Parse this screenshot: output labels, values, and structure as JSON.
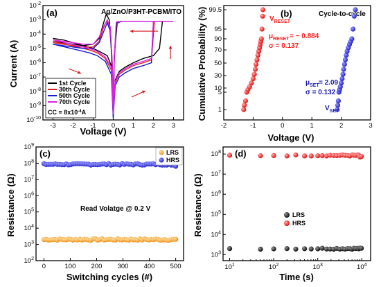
{
  "chart_data": [
    {
      "panel": "(a)",
      "type": "line",
      "title": "Ag/ZnO/P3HT-PCBM/ITO",
      "xlabel": "Voltage (V)",
      "ylabel": "Current (A)",
      "xlim": [
        -3.5,
        3.5
      ],
      "ylim_log": [
        -10,
        -2
      ],
      "x_ticks": [
        "-3",
        "-2",
        "-1",
        "0",
        "1",
        "2",
        "3"
      ],
      "y_ticks": [
        "10-10",
        "10-9",
        "10-8",
        "10-7",
        "10-6",
        "10-5",
        "10-4",
        "10-3",
        "10-2"
      ],
      "log_scale": "y",
      "legend_position": "bottom-left",
      "annotation": "CC = 8x10-4A",
      "series": [
        {
          "name": "1st Cycle",
          "color": "#000000",
          "branch_set": [
            [
              -3,
              -4.5
            ],
            [
              -2.5,
              -4.6
            ],
            [
              -2,
              -4.7
            ],
            [
              -1.5,
              -4.8
            ],
            [
              -1,
              -4.7
            ],
            [
              -0.7,
              -4.3
            ],
            [
              -0.5,
              -3.3
            ],
            [
              -0.35,
              -2.6
            ],
            [
              -0.2,
              -3.0
            ],
            [
              -0.1,
              -5
            ],
            [
              0,
              -9.6
            ],
            [
              0.1,
              -7.2
            ],
            [
              0.3,
              -6.6
            ],
            [
              0.6,
              -6.3
            ],
            [
              1,
              -6.0
            ],
            [
              1.5,
              -5.7
            ],
            [
              2,
              -5.5
            ],
            [
              2.3,
              -5.0
            ],
            [
              2.45,
              -3.1
            ]
          ],
          "branch_reset": [
            [
              3,
              -3.1
            ],
            [
              2,
              -3.1
            ],
            [
              1,
              -3.1
            ],
            [
              0.5,
              -3.1
            ],
            [
              0.2,
              -3.15
            ],
            [
              0.05,
              -5.5
            ],
            [
              0,
              -9.8
            ],
            [
              -0.1,
              -6.2
            ],
            [
              -0.3,
              -5.5
            ],
            [
              -0.7,
              -5.2
            ],
            [
              -1,
              -5.0
            ],
            [
              -1.5,
              -4.8
            ],
            [
              -2,
              -4.6
            ],
            [
              -2.5,
              -4.4
            ],
            [
              -3,
              -4.3
            ]
          ]
        },
        {
          "name": "30th Cycle",
          "color": "#e02020",
          "branch_set": [
            [
              -3,
              -4.6
            ],
            [
              -2.5,
              -4.7
            ],
            [
              -2,
              -4.8
            ],
            [
              -1.5,
              -4.9
            ],
            [
              -1,
              -4.9
            ],
            [
              -0.7,
              -4.5
            ],
            [
              -0.5,
              -3.6
            ],
            [
              -0.3,
              -3.0
            ],
            [
              -0.15,
              -3.6
            ],
            [
              -0.05,
              -6
            ],
            [
              0,
              -9.3
            ],
            [
              0.1,
              -7.4
            ],
            [
              0.3,
              -6.8
            ],
            [
              0.6,
              -6.5
            ],
            [
              1,
              -6.2
            ],
            [
              1.5,
              -6.0
            ],
            [
              1.9,
              -5.8
            ],
            [
              2.05,
              -3.1
            ]
          ],
          "branch_reset": [
            [
              3,
              -3.1
            ],
            [
              2,
              -3.1
            ],
            [
              1,
              -3.1
            ],
            [
              0.4,
              -3.1
            ],
            [
              0.15,
              -3.2
            ],
            [
              0.05,
              -5.8
            ],
            [
              0,
              -9.5
            ],
            [
              -0.1,
              -6.5
            ],
            [
              -0.4,
              -5.7
            ],
            [
              -0.8,
              -5.3
            ],
            [
              -1.2,
              -5.1
            ],
            [
              -1.8,
              -4.9
            ],
            [
              -2.4,
              -4.7
            ],
            [
              -3,
              -4.5
            ]
          ]
        },
        {
          "name": "50th Cycle",
          "color": "#1a1ad6",
          "branch_set": [
            [
              -3,
              -4.7
            ],
            [
              -2.5,
              -4.8
            ],
            [
              -2,
              -4.9
            ],
            [
              -1.5,
              -5.0
            ],
            [
              -1,
              -5.0
            ],
            [
              -0.7,
              -4.6
            ],
            [
              -0.5,
              -3.9
            ],
            [
              -0.3,
              -3.2
            ],
            [
              -0.15,
              -3.8
            ],
            [
              -0.05,
              -6.2
            ],
            [
              0,
              -9.7
            ],
            [
              0.1,
              -7.6
            ],
            [
              0.3,
              -7.0
            ],
            [
              0.6,
              -6.7
            ],
            [
              1,
              -6.4
            ],
            [
              1.5,
              -6.2
            ],
            [
              1.9,
              -6.0
            ],
            [
              2.0,
              -3.1
            ]
          ],
          "branch_reset": [
            [
              3,
              -3.1
            ],
            [
              2,
              -3.1
            ],
            [
              1,
              -3.1
            ],
            [
              0.4,
              -3.1
            ],
            [
              0.15,
              -3.25
            ],
            [
              0.05,
              -6.0
            ],
            [
              0,
              -9.9
            ],
            [
              -0.1,
              -6.8
            ],
            [
              -0.4,
              -5.9
            ],
            [
              -0.8,
              -5.5
            ],
            [
              -1.2,
              -5.3
            ],
            [
              -1.8,
              -5.1
            ],
            [
              -2.4,
              -4.9
            ],
            [
              -3,
              -4.7
            ]
          ]
        },
        {
          "name": "70th Cycle",
          "color": "#e020e0",
          "branch_set": [
            [
              -3,
              -4.4
            ],
            [
              -2.5,
              -4.5
            ],
            [
              -2,
              -4.6
            ],
            [
              -1.5,
              -4.7
            ],
            [
              -1,
              -4.7
            ],
            [
              -0.7,
              -4.2
            ],
            [
              -0.5,
              -3.5
            ],
            [
              -0.3,
              -3.05
            ],
            [
              -0.15,
              -3.5
            ],
            [
              -0.05,
              -6.1
            ],
            [
              0,
              -9.4
            ],
            [
              0.1,
              -7.3
            ],
            [
              0.3,
              -6.7
            ],
            [
              0.6,
              -6.4
            ],
            [
              1,
              -6.1
            ],
            [
              1.5,
              -5.9
            ],
            [
              1.9,
              -5.7
            ],
            [
              2.0,
              -3.1
            ]
          ],
          "branch_reset": [
            [
              3,
              -3.1
            ],
            [
              2,
              -3.1
            ],
            [
              1,
              -3.1
            ],
            [
              0.4,
              -3.1
            ],
            [
              0.15,
              -3.15
            ],
            [
              0.05,
              -5.6
            ],
            [
              0,
              -9.6
            ],
            [
              -0.1,
              -6.3
            ],
            [
              -0.4,
              -5.6
            ],
            [
              -0.8,
              -5.2
            ],
            [
              -1.2,
              -5.0
            ],
            [
              -1.8,
              -4.8
            ],
            [
              -2.4,
              -4.6
            ],
            [
              -3,
              -4.4
            ]
          ]
        }
      ]
    },
    {
      "panel": "(b)",
      "type": "scatter",
      "title": "Cycle-to-cycle",
      "xlabel": "Voltage (V)",
      "ylabel": "Cumulative Probability (%)",
      "xlim": [
        -2,
        3
      ],
      "x_ticks": [
        "-2",
        "-1",
        "0",
        "1",
        "2",
        "3"
      ],
      "y_ticks": [
        "1",
        "5",
        "10",
        "30",
        "50",
        "70",
        "90",
        "95",
        "99.5"
      ],
      "y_scale": "probability",
      "series": [
        {
          "name": "VRESET",
          "color": "#ff1a1a",
          "mu": "μRESET = − 0.884",
          "sigma": "σ = 0.137",
          "points": [
            [
              -1.32,
              1
            ],
            [
              -1.3,
              2
            ],
            [
              -1.26,
              3
            ],
            [
              -1.22,
              5
            ],
            [
              -1.18,
              8
            ],
            [
              -1.12,
              12
            ],
            [
              -1.06,
              18
            ],
            [
              -1.0,
              25
            ],
            [
              -0.96,
              32
            ],
            [
              -0.93,
              40
            ],
            [
              -0.9,
              48
            ],
            [
              -0.87,
              55
            ],
            [
              -0.84,
              62
            ],
            [
              -0.81,
              68
            ],
            [
              -0.78,
              74
            ],
            [
              -0.76,
              80
            ],
            [
              -0.74,
              85
            ],
            [
              -0.72,
              90
            ],
            [
              -0.7,
              95
            ],
            [
              -0.68,
              98
            ],
            [
              -0.67,
              99.5
            ]
          ]
        },
        {
          "name": "VSET",
          "color": "#1a1ab0",
          "mu": "μSET = 2.09",
          "sigma": "σ = 0.132",
          "points": [
            [
              1.86,
              1
            ],
            [
              1.88,
              2
            ],
            [
              1.9,
              3
            ],
            [
              1.92,
              5
            ],
            [
              1.94,
              8
            ],
            [
              1.97,
              12
            ],
            [
              2.0,
              18
            ],
            [
              2.03,
              25
            ],
            [
              2.06,
              32
            ],
            [
              2.08,
              40
            ],
            [
              2.11,
              48
            ],
            [
              2.14,
              55
            ],
            [
              2.17,
              62
            ],
            [
              2.2,
              68
            ],
            [
              2.24,
              74
            ],
            [
              2.28,
              80
            ],
            [
              2.32,
              85
            ],
            [
              2.36,
              90
            ],
            [
              2.4,
              95
            ],
            [
              2.44,
              98
            ],
            [
              2.48,
              99.5
            ]
          ]
        }
      ]
    },
    {
      "panel": "(c)",
      "type": "scatter",
      "xlabel": "Switching cycles (#)",
      "ylabel": "Resistance (Ω)",
      "xlim": [
        -30,
        530
      ],
      "x_ticks": [
        "0",
        "100",
        "200",
        "300",
        "400",
        "500"
      ],
      "y_ticks": [
        "102",
        "103",
        "104",
        "105",
        "106",
        "107",
        "108",
        "109"
      ],
      "log_scale": "y",
      "ylim_log": [
        2,
        9
      ],
      "annotation": "Read Volatge @ 0.2 V",
      "legend_position": "top-right",
      "series": [
        {
          "name": "LRS",
          "color": "#ff9a1f",
          "log_value_mean": 3.3,
          "x_range": [
            0,
            500
          ],
          "count": 60
        },
        {
          "name": "HRS",
          "color": "#2a2ae0",
          "log_value_mean": 7.93,
          "x_range": [
            0,
            500
          ],
          "count": 60
        }
      ]
    },
    {
      "panel": "(d)",
      "type": "scatter",
      "xlabel": "Time (s)",
      "ylabel": "Resistance (Ω)",
      "x_ticks": [
        "101",
        "102",
        "103",
        "104"
      ],
      "y_ticks": [
        "103",
        "104",
        "105",
        "106",
        "107",
        "108"
      ],
      "log_scale": "xy",
      "xlim_log": [
        0.85,
        4.2
      ],
      "ylim_log": [
        2.7,
        8.35
      ],
      "legend_position": "center-right",
      "series": [
        {
          "name": "LRS",
          "color": "#000000",
          "log_value_mean": 3.3,
          "time_range_log": [
            1,
            4
          ]
        },
        {
          "name": "HRS",
          "color": "#ff1a1a",
          "log_value_mean": 7.93,
          "time_range_log": [
            1,
            4
          ]
        }
      ]
    }
  ]
}
